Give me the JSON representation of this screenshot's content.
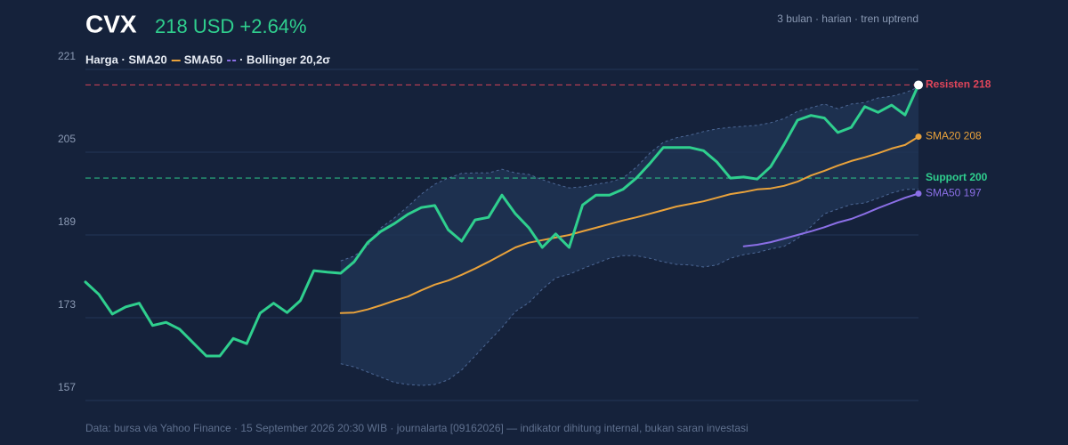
{
  "chart_data": {
    "type": "line",
    "title": "CVX",
    "subtitle": "218 USD +2.64%",
    "note": "3 bulan · harian · tren uptrend",
    "legend_text": [
      "Harga · SMA20",
      "SMA50",
      "· Bollinger 20,2σ"
    ],
    "footer": "Data: bursa via Yahoo Finance · 15 September 2026 20:30 WIB · journalarta [09162026] — indikator dihitung internal, bukan saran investasi",
    "ylim": [
      157,
      221
    ],
    "yticks": [
      157,
      173,
      189,
      205,
      221
    ],
    "grid": true,
    "price": {
      "color": "#2fcf8e",
      "values": [
        179.9,
        177.5,
        173.7,
        175.1,
        175.8,
        171.5,
        172.1,
        170.8,
        168.2,
        165.6,
        165.6,
        169.0,
        168.0,
        173.9,
        175.8,
        174.0,
        176.3,
        182.1,
        181.8,
        181.6,
        183.8,
        187.5,
        189.7,
        191.2,
        193.0,
        194.3,
        194.7,
        190.0,
        187.8,
        191.9,
        192.4,
        196.7,
        193.1,
        190.4,
        186.6,
        189.2,
        186.6,
        194.8,
        196.7,
        196.7,
        197.8,
        200.0,
        202.8,
        205.9,
        205.9,
        205.9,
        205.3,
        203.1,
        200.0,
        200.2,
        199.8,
        202.2,
        206.5,
        211.2,
        212.1,
        211.6,
        208.8,
        209.8,
        213.8,
        212.7,
        214.1,
        212.2,
        218
      ]
    },
    "sma20": {
      "color": "#e9a23b",
      "end_label": "SMA20 208",
      "values": [
        null,
        null,
        null,
        null,
        null,
        null,
        null,
        null,
        null,
        null,
        null,
        null,
        null,
        null,
        null,
        null,
        null,
        null,
        null,
        173.9,
        174.0,
        174.6,
        175.4,
        176.3,
        177.1,
        178.3,
        179.4,
        180.2,
        181.3,
        182.5,
        183.8,
        185.2,
        186.6,
        187.5,
        188.0,
        188.5,
        189.0,
        189.7,
        190.4,
        191.1,
        191.8,
        192.4,
        193.1,
        193.8,
        194.5,
        195.0,
        195.5,
        196.2,
        196.9,
        197.3,
        197.8,
        198.0,
        198.5,
        199.3,
        200.5,
        201.4,
        202.4,
        203.3,
        204.0,
        204.8,
        205.7,
        206.4,
        208
      ]
    },
    "sma50": {
      "color": "#8b6fe6",
      "end_label": "SMA50 197",
      "values": [
        null,
        null,
        null,
        null,
        null,
        null,
        null,
        null,
        null,
        null,
        null,
        null,
        null,
        null,
        null,
        null,
        null,
        null,
        null,
        null,
        null,
        null,
        null,
        null,
        null,
        null,
        null,
        null,
        null,
        null,
        null,
        null,
        null,
        null,
        null,
        null,
        null,
        null,
        null,
        null,
        null,
        null,
        null,
        null,
        null,
        null,
        null,
        null,
        null,
        186.8,
        187.1,
        187.6,
        188.3,
        189.0,
        189.7,
        190.5,
        191.4,
        192.1,
        193.1,
        194.2,
        195.2,
        196.2,
        197
      ]
    },
    "bollinger_upper": {
      "color": "#4d6896",
      "values": [
        null,
        null,
        null,
        null,
        null,
        null,
        null,
        null,
        null,
        null,
        null,
        null,
        null,
        null,
        null,
        null,
        null,
        null,
        null,
        184.0,
        184.9,
        186.9,
        190.4,
        192.3,
        194.5,
        196.9,
        198.8,
        200.0,
        200.9,
        201.0,
        201.0,
        201.7,
        201.0,
        200.7,
        199.7,
        198.8,
        198.1,
        198.3,
        198.8,
        199.2,
        200.0,
        202.1,
        204.8,
        206.9,
        207.8,
        208.3,
        209.0,
        209.5,
        209.8,
        210.0,
        210.2,
        210.7,
        211.5,
        212.9,
        213.6,
        214.3,
        213.4,
        214.3,
        214.6,
        215.5,
        215.8,
        216.5,
        217.6
      ]
    },
    "bollinger_lower": {
      "color": "#4d6896",
      "values": [
        null,
        null,
        null,
        null,
        null,
        null,
        null,
        null,
        null,
        null,
        null,
        null,
        null,
        null,
        null,
        null,
        null,
        null,
        null,
        164.1,
        163.5,
        162.5,
        161.5,
        160.5,
        160.1,
        159.9,
        160.1,
        161.0,
        162.9,
        165.6,
        168.4,
        171.1,
        174.2,
        175.9,
        178.5,
        180.7,
        181.4,
        182.5,
        183.5,
        184.5,
        185.0,
        185.0,
        184.5,
        183.8,
        183.3,
        183.2,
        182.8,
        183.2,
        184.5,
        185.2,
        185.6,
        186.3,
        186.8,
        188.3,
        190.6,
        193.1,
        194.0,
        194.9,
        195.2,
        196.1,
        197.1,
        197.8,
        197.8
      ]
    },
    "band_color": "#1f3253",
    "levels": [
      {
        "label": "Resisten 218",
        "value": 218,
        "color": "#e0455a"
      },
      {
        "label": "Support 200",
        "value": 200,
        "color": "#2fcf8e"
      }
    ]
  }
}
